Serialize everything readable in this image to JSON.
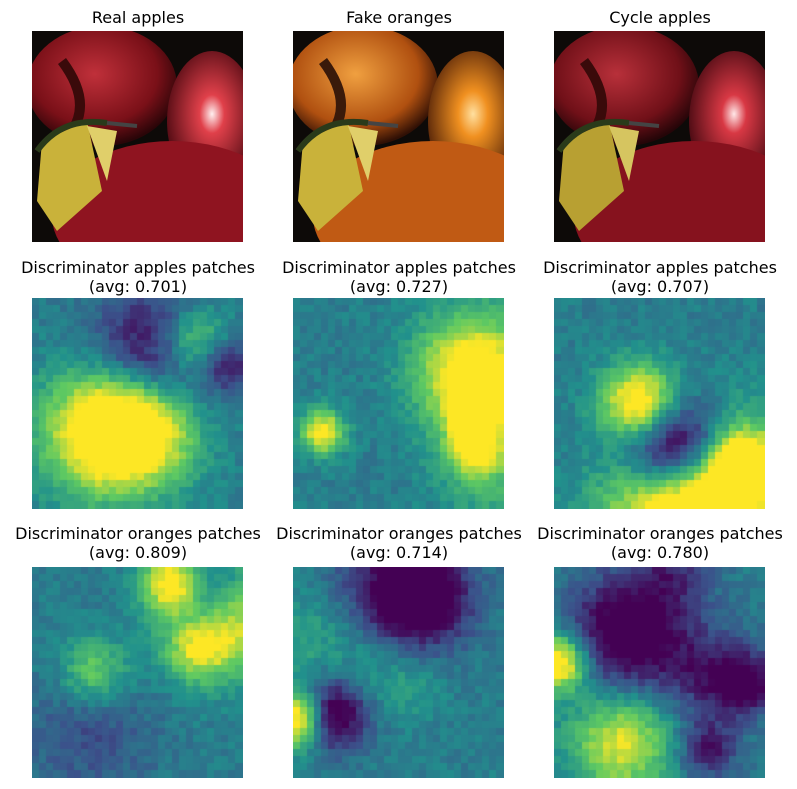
{
  "figure": {
    "rows": [
      {
        "panels": [
          {
            "title_line1": "Real apples",
            "title_line2": "",
            "kind": "photo",
            "tint": "apple"
          },
          {
            "title_line1": "Fake oranges",
            "title_line2": "",
            "kind": "photo",
            "tint": "orange"
          },
          {
            "title_line1": "Cycle apples",
            "title_line2": "",
            "kind": "photo",
            "tint": "apple"
          }
        ]
      },
      {
        "panels": [
          {
            "title_line1": "Discriminator apples patches",
            "title_line2": "(avg: 0.701)",
            "kind": "heatmap",
            "seed": 11
          },
          {
            "title_line1": "Discriminator apples patches",
            "title_line2": "(avg: 0.727)",
            "kind": "heatmap",
            "seed": 23
          },
          {
            "title_line1": "Discriminator apples patches",
            "title_line2": "(avg: 0.707)",
            "kind": "heatmap",
            "seed": 37
          }
        ]
      },
      {
        "panels": [
          {
            "title_line1": "Discriminator oranges patches",
            "title_line2": "(avg: 0.809)",
            "kind": "heatmap",
            "seed": 41
          },
          {
            "title_line1": "Discriminator oranges patches",
            "title_line2": "(avg: 0.714)",
            "kind": "heatmap",
            "seed": 53
          },
          {
            "title_line1": "Discriminator oranges patches",
            "title_line2": "(avg: 0.780)",
            "kind": "heatmap",
            "seed": 67
          }
        ]
      }
    ],
    "colormap": "viridis",
    "colors": {
      "apple_red": "#8f1420",
      "orange": "#e07a18",
      "leaf_yellow": "#c9b23a",
      "background": "#0d0a08"
    }
  }
}
